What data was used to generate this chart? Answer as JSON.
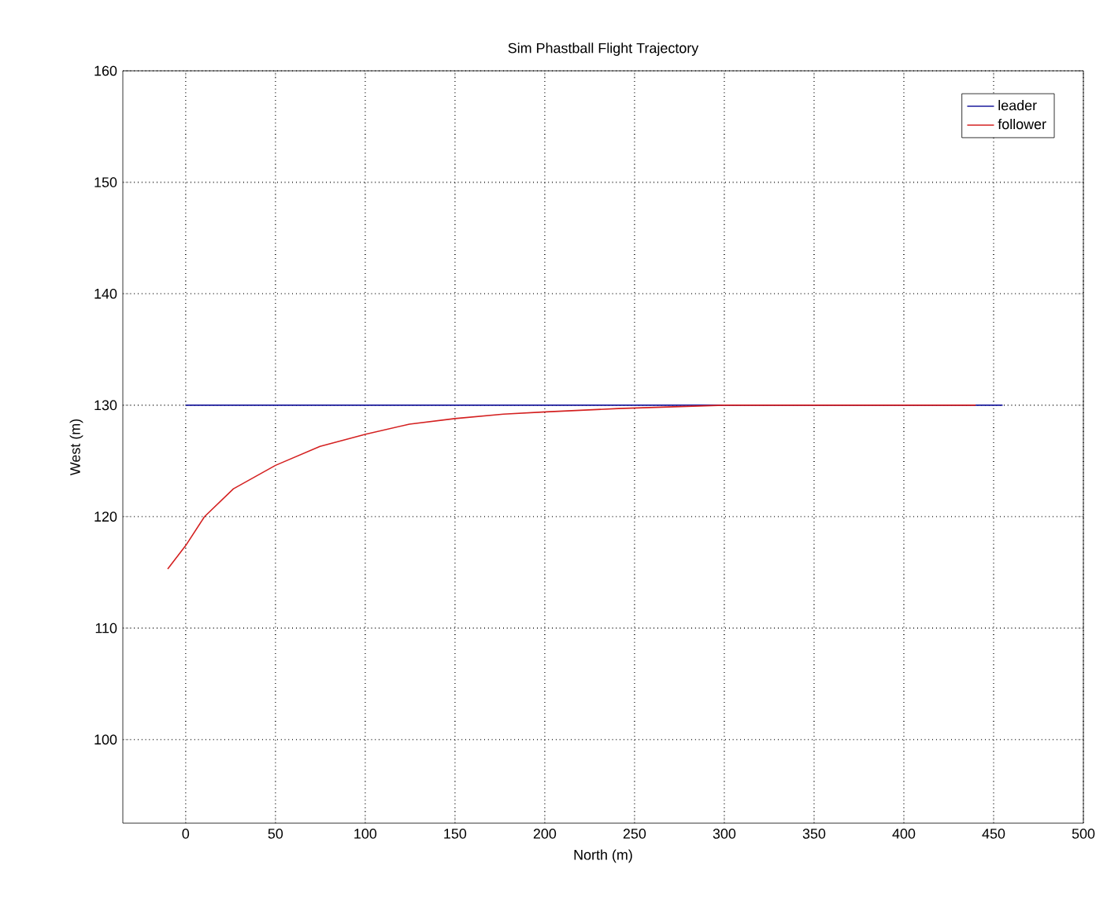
{
  "chart_data": {
    "type": "line",
    "title": "Sim Phastball Flight Trajectory",
    "xlabel": "North (m)",
    "ylabel": "West (m)",
    "xlim": [
      -35,
      500
    ],
    "ylim": [
      92.5,
      160
    ],
    "xticks": [
      0,
      50,
      100,
      150,
      200,
      250,
      300,
      350,
      400,
      450,
      500
    ],
    "yticks": [
      100,
      110,
      120,
      130,
      140,
      150,
      160
    ],
    "grid": true,
    "legend": "top right",
    "line_style": "solid",
    "marker": "none",
    "series": [
      {
        "name": "leader",
        "color": "#1a1a9c",
        "x": [
          0,
          455
        ],
        "values": [
          130,
          130
        ]
      },
      {
        "name": "follower",
        "color": "#d42020",
        "x": [
          -10,
          0,
          10.5,
          26.6,
          50,
          74.8,
          100.3,
          124.6,
          150,
          177,
          200.6,
          241,
          300,
          440
        ],
        "values": [
          115.3,
          117.4,
          120,
          122.5,
          124.6,
          126.3,
          127.4,
          128.3,
          128.8,
          129.2,
          129.4,
          129.7,
          130,
          130
        ]
      }
    ]
  }
}
